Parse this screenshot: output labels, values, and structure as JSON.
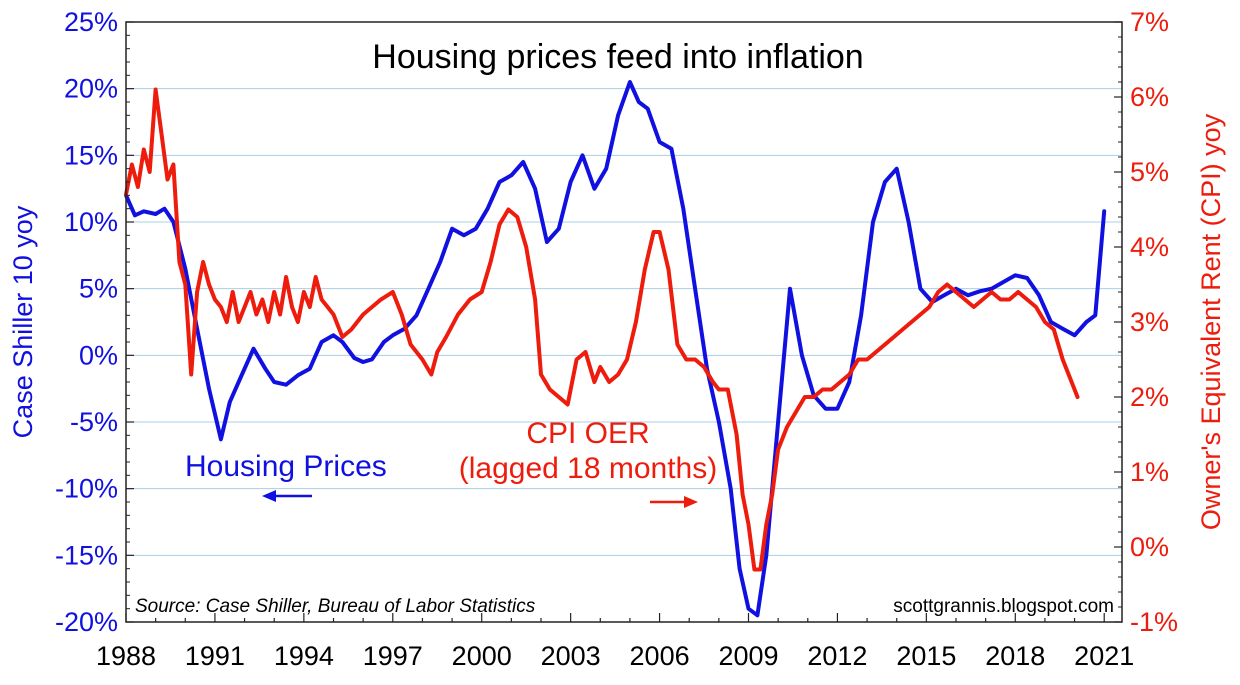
{
  "chart_data": {
    "type": "line",
    "title": "Housing prices feed into inflation",
    "source": "Source: Case Shiller, Bureau of Labor Statistics",
    "credit": "scottgrannis.blogspot.com",
    "y_left_label": "Case Shiller 10 yoy",
    "y_right_label": "Owner's Equivalent Rent (CPI) yoy",
    "x_ticks": [
      "1988",
      "1991",
      "1994",
      "1997",
      "2000",
      "2003",
      "2006",
      "2009",
      "2012",
      "2015",
      "2018",
      "2021"
    ],
    "y_left_ticks": [
      "25%",
      "20%",
      "15%",
      "10%",
      "5%",
      "0%",
      "-5%",
      "-10%",
      "-15%",
      "-20%"
    ],
    "y_right_ticks": [
      "7%",
      "6%",
      "5%",
      "4%",
      "3%",
      "2%",
      "1%",
      "0%",
      "-1%"
    ],
    "xlim": [
      1988,
      2021.6
    ],
    "ylim_left": [
      -20,
      25
    ],
    "ylim_right": [
      -1,
      7
    ],
    "grid": true,
    "colors": {
      "housing": "#1010e0",
      "oer": "#ee1c0c",
      "grid": "#a9cfe6"
    },
    "annotations": {
      "housing_label": "Housing Prices",
      "oer_label_line1": "CPI OER",
      "oer_label_line2": "(lagged 18 months)"
    },
    "series": [
      {
        "name": "Housing Prices",
        "axis": "left",
        "x": [
          1988.0,
          1988.3,
          1988.6,
          1989.0,
          1989.3,
          1989.6,
          1990.0,
          1990.4,
          1990.8,
          1991.2,
          1991.5,
          1991.9,
          1992.3,
          1992.7,
          1993.0,
          1993.4,
          1993.8,
          1994.2,
          1994.6,
          1995.0,
          1995.3,
          1995.7,
          1996.0,
          1996.3,
          1996.7,
          1997.0,
          1997.4,
          1997.8,
          1998.2,
          1998.6,
          1999.0,
          1999.4,
          1999.8,
          2000.2,
          2000.6,
          2001.0,
          2001.4,
          2001.8,
          2002.2,
          2002.6,
          2003.0,
          2003.4,
          2003.8,
          2004.2,
          2004.6,
          2005.0,
          2005.3,
          2005.6,
          2006.0,
          2006.4,
          2006.8,
          2007.2,
          2007.6,
          2008.0,
          2008.4,
          2008.7,
          2009.0,
          2009.3,
          2009.6,
          2010.0,
          2010.4,
          2010.8,
          2011.2,
          2011.6,
          2012.0,
          2012.4,
          2012.8,
          2013.2,
          2013.6,
          2014.0,
          2014.4,
          2014.8,
          2015.2,
          2015.6,
          2016.0,
          2016.4,
          2016.8,
          2017.2,
          2017.6,
          2018.0,
          2018.4,
          2018.8,
          2019.2,
          2019.6,
          2020.0,
          2020.4,
          2020.7,
          2021.0
        ],
        "y": [
          12.0,
          10.5,
          10.8,
          10.6,
          11.0,
          10.0,
          6.5,
          2.0,
          -2.5,
          -6.3,
          -3.5,
          -1.5,
          0.5,
          -1.0,
          -2.0,
          -2.2,
          -1.5,
          -1.0,
          1.0,
          1.5,
          1.0,
          -0.2,
          -0.5,
          -0.3,
          1.0,
          1.5,
          2.0,
          3.0,
          5.0,
          7.0,
          9.5,
          9.0,
          9.5,
          11.0,
          13.0,
          13.5,
          14.5,
          12.5,
          8.5,
          9.5,
          13.0,
          15.0,
          12.5,
          14.0,
          18.0,
          20.5,
          19.0,
          18.5,
          16.0,
          15.5,
          11.0,
          5.0,
          -1.0,
          -5.0,
          -10.0,
          -16.0,
          -19.0,
          -19.5,
          -15.0,
          -5.0,
          5.0,
          0.0,
          -3.0,
          -4.0,
          -4.0,
          -2.0,
          3.0,
          10.0,
          13.0,
          14.0,
          10.0,
          5.0,
          4.0,
          4.5,
          5.0,
          4.5,
          4.8,
          5.0,
          5.5,
          6.0,
          5.8,
          4.5,
          2.5,
          2.0,
          1.5,
          2.5,
          3.0,
          10.8
        ]
      },
      {
        "name": "CPI OER (lagged 18 months)",
        "axis": "right",
        "x": [
          1988.0,
          1988.2,
          1988.4,
          1988.6,
          1988.8,
          1989.0,
          1989.2,
          1989.4,
          1989.6,
          1989.8,
          1990.0,
          1990.2,
          1990.4,
          1990.6,
          1990.8,
          1991.0,
          1991.2,
          1991.4,
          1991.6,
          1991.8,
          1992.0,
          1992.2,
          1992.4,
          1992.6,
          1992.8,
          1993.0,
          1993.2,
          1993.4,
          1993.6,
          1993.8,
          1994.0,
          1994.2,
          1994.4,
          1994.6,
          1994.8,
          1995.0,
          1995.3,
          1995.6,
          1996.0,
          1996.3,
          1996.6,
          1997.0,
          1997.3,
          1997.6,
          1998.0,
          1998.3,
          1998.5,
          1998.8,
          1999.2,
          1999.6,
          2000.0,
          2000.3,
          2000.6,
          2000.9,
          2001.2,
          2001.5,
          2001.8,
          2002.0,
          2002.3,
          2002.6,
          2002.9,
          2003.2,
          2003.5,
          2003.8,
          2004.0,
          2004.3,
          2004.6,
          2004.9,
          2005.2,
          2005.5,
          2005.8,
          2006.0,
          2006.3,
          2006.6,
          2006.9,
          2007.2,
          2007.5,
          2007.8,
          2008.0,
          2008.3,
          2008.6,
          2008.8,
          2009.0,
          2009.2,
          2009.4,
          2009.6,
          2009.8,
          2010.0,
          2010.3,
          2010.6,
          2010.9,
          2011.2,
          2011.5,
          2011.8,
          2012.1,
          2012.4,
          2012.7,
          2013.0,
          2013.3,
          2013.6,
          2013.9,
          2014.2,
          2014.5,
          2014.8,
          2015.1,
          2015.4,
          2015.7,
          2016.0,
          2016.3,
          2016.6,
          2016.9,
          2017.2,
          2017.5,
          2017.8,
          2018.1,
          2018.4,
          2018.7,
          2019.0,
          2019.3,
          2019.6,
          2019.9,
          2020.1
        ],
        "y": [
          4.7,
          5.1,
          4.8,
          5.3,
          5.0,
          6.1,
          5.5,
          4.9,
          5.1,
          3.8,
          3.5,
          2.3,
          3.4,
          3.8,
          3.5,
          3.3,
          3.2,
          3.0,
          3.4,
          3.0,
          3.2,
          3.4,
          3.1,
          3.3,
          3.0,
          3.4,
          3.1,
          3.6,
          3.2,
          3.0,
          3.4,
          3.2,
          3.6,
          3.3,
          3.2,
          3.1,
          2.8,
          2.9,
          3.1,
          3.2,
          3.3,
          3.4,
          3.1,
          2.7,
          2.5,
          2.3,
          2.6,
          2.8,
          3.1,
          3.3,
          3.4,
          3.8,
          4.3,
          4.5,
          4.4,
          4.0,
          3.3,
          2.3,
          2.1,
          2.0,
          1.9,
          2.5,
          2.6,
          2.2,
          2.4,
          2.2,
          2.3,
          2.5,
          3.0,
          3.7,
          4.2,
          4.2,
          3.7,
          2.7,
          2.5,
          2.5,
          2.4,
          2.2,
          2.1,
          2.1,
          1.5,
          0.7,
          0.3,
          -0.3,
          -0.3,
          0.3,
          0.7,
          1.3,
          1.6,
          1.8,
          2.0,
          2.0,
          2.1,
          2.1,
          2.2,
          2.3,
          2.5,
          2.5,
          2.6,
          2.7,
          2.8,
          2.9,
          3.0,
          3.1,
          3.2,
          3.4,
          3.5,
          3.4,
          3.3,
          3.2,
          3.3,
          3.4,
          3.3,
          3.3,
          3.4,
          3.3,
          3.2,
          3.0,
          2.9,
          2.5,
          2.2,
          2.0
        ]
      }
    ]
  }
}
